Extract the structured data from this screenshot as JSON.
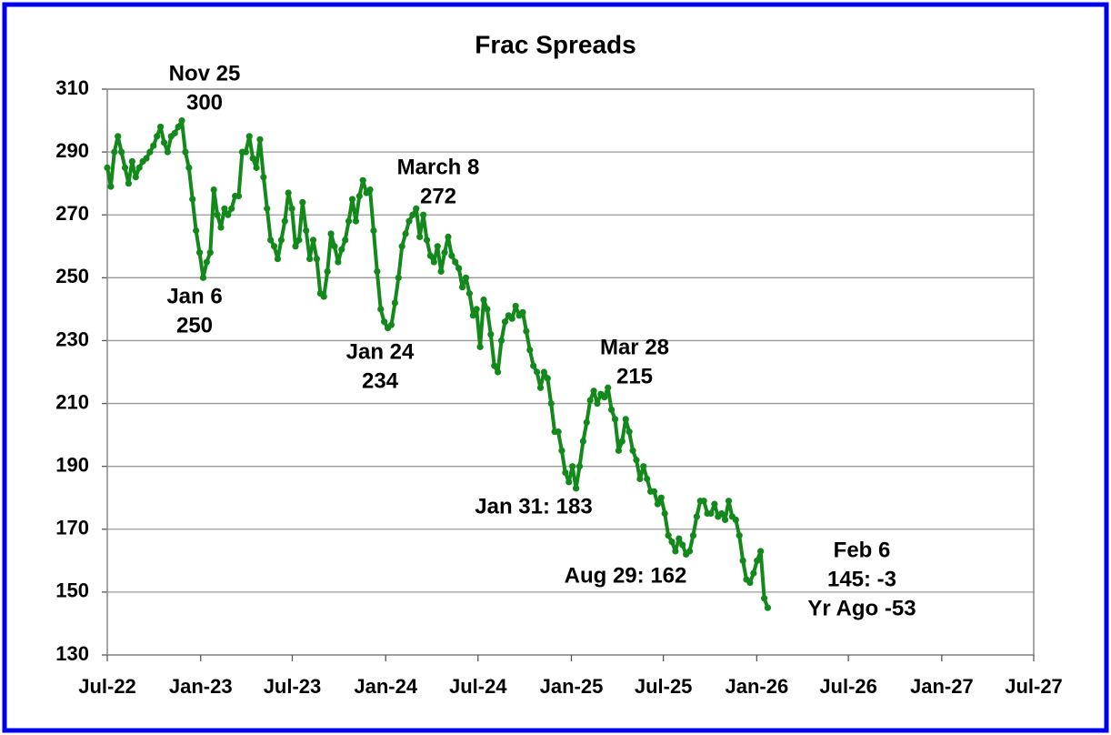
{
  "chart_data": {
    "type": "line",
    "title": "Frac Spreads",
    "x": [
      0,
      1,
      2,
      3,
      4,
      5,
      6,
      7,
      8,
      9,
      10,
      11,
      12,
      13,
      14,
      15,
      16,
      17,
      18,
      19,
      20,
      21,
      22,
      23,
      24,
      25,
      26,
      27,
      28,
      29,
      30,
      31,
      32,
      33,
      34,
      35,
      36,
      37,
      38,
      39,
      40,
      41,
      42,
      43,
      44,
      45,
      46,
      47,
      48,
      49,
      50,
      51,
      52,
      53,
      54,
      55,
      56,
      57,
      58,
      59,
      60,
      61,
      62,
      63,
      64,
      65,
      66,
      67,
      68,
      69,
      70,
      71,
      72,
      73,
      74,
      75,
      76,
      77,
      78,
      79,
      80,
      81,
      82,
      83,
      84,
      85,
      86,
      87,
      88,
      89,
      90,
      91,
      92,
      93,
      94,
      95,
      96,
      97,
      98,
      99,
      100,
      101,
      102,
      103,
      104,
      105,
      106,
      107,
      108,
      109,
      110,
      111,
      112,
      113,
      114,
      115,
      116,
      117,
      118,
      119,
      120,
      121,
      122,
      123,
      124,
      125,
      126,
      127,
      128,
      129,
      130,
      131,
      132,
      133,
      134,
      135,
      136,
      137,
      138,
      139,
      140,
      141,
      142,
      143,
      144,
      145,
      146,
      147,
      148,
      149,
      150,
      151,
      152,
      153,
      154,
      155,
      156,
      157,
      158,
      159,
      160,
      161,
      162,
      163,
      164,
      165,
      166,
      167,
      168,
      169,
      170,
      171,
      172,
      173,
      174,
      175,
      176,
      177,
      178,
      179,
      180,
      181,
      182,
      183,
      184,
      185,
      186
    ],
    "values": [
      285,
      279,
      290,
      295,
      290,
      285,
      280,
      287,
      282,
      285,
      287,
      288,
      290,
      292,
      295,
      298,
      293,
      290,
      295,
      296,
      298,
      300,
      290,
      285,
      275,
      265,
      258,
      250,
      255,
      258,
      278,
      270,
      266,
      272,
      270,
      272,
      276,
      276,
      290,
      290,
      295,
      288,
      285,
      294,
      282,
      272,
      262,
      260,
      256,
      262,
      268,
      277,
      272,
      260,
      262,
      274,
      265,
      256,
      262,
      256,
      245,
      244,
      252,
      264,
      260,
      255,
      259,
      262,
      268,
      275,
      268,
      276,
      281,
      277,
      278,
      265,
      252,
      240,
      236,
      234,
      235,
      242,
      250,
      260,
      264,
      268,
      270,
      272,
      263,
      270,
      262,
      257,
      255,
      260,
      252,
      258,
      263,
      257,
      255,
      253,
      247,
      250,
      245,
      238,
      240,
      228,
      243,
      240,
      232,
      222,
      220,
      230,
      236,
      238,
      237,
      241,
      238,
      239,
      233,
      227,
      222,
      220,
      215,
      220,
      218,
      210,
      201,
      201,
      195,
      188,
      185,
      190,
      183,
      190,
      198,
      204,
      211,
      214,
      210,
      213,
      212,
      215,
      208,
      205,
      195,
      198,
      205,
      201,
      195,
      192,
      186,
      190,
      186,
      182,
      182,
      178,
      180,
      175,
      168,
      166,
      163,
      167,
      165,
      162,
      163,
      168,
      174,
      179,
      179,
      175,
      175,
      178,
      174,
      175,
      173,
      179,
      174,
      173,
      168,
      160,
      154,
      153,
      156,
      160,
      163,
      148,
      145
    ],
    "color": "#12891a",
    "xlim": [
      0,
      260.9
    ],
    "xticks": [
      {
        "value": 0,
        "label": "Jul-22"
      },
      {
        "value": 26.3,
        "label": "Jan-23"
      },
      {
        "value": 52.1,
        "label": "Jul-23"
      },
      {
        "value": 78.4,
        "label": "Jan-24"
      },
      {
        "value": 104.4,
        "label": "Jul-24"
      },
      {
        "value": 130.7,
        "label": "Jan-25"
      },
      {
        "value": 156.6,
        "label": "Jul-25"
      },
      {
        "value": 182.9,
        "label": "Jan-26"
      },
      {
        "value": 208.7,
        "label": "Jul-26"
      },
      {
        "value": 235,
        "label": "Jan-27"
      },
      {
        "value": 260.9,
        "label": "Jul-27"
      }
    ],
    "ylim": [
      130,
      310
    ],
    "yticks": [
      130,
      150,
      170,
      190,
      210,
      230,
      250,
      270,
      290,
      310
    ],
    "grid": true,
    "annotations": [
      {
        "lines": [
          "Nov 25",
          "300"
        ]
      },
      {
        "lines": [
          "Jan 6",
          "250"
        ]
      },
      {
        "lines": [
          "March 8",
          "272"
        ]
      },
      {
        "lines": [
          "Jan 24",
          "234"
        ]
      },
      {
        "lines": [
          "Mar 28",
          "215"
        ]
      },
      {
        "lines": [
          "Jan 31: 183"
        ]
      },
      {
        "lines": [
          "Aug 29: 162"
        ]
      },
      {
        "lines": [
          "Feb 6",
          "145: -3",
          "Yr Ago -53"
        ]
      }
    ]
  }
}
